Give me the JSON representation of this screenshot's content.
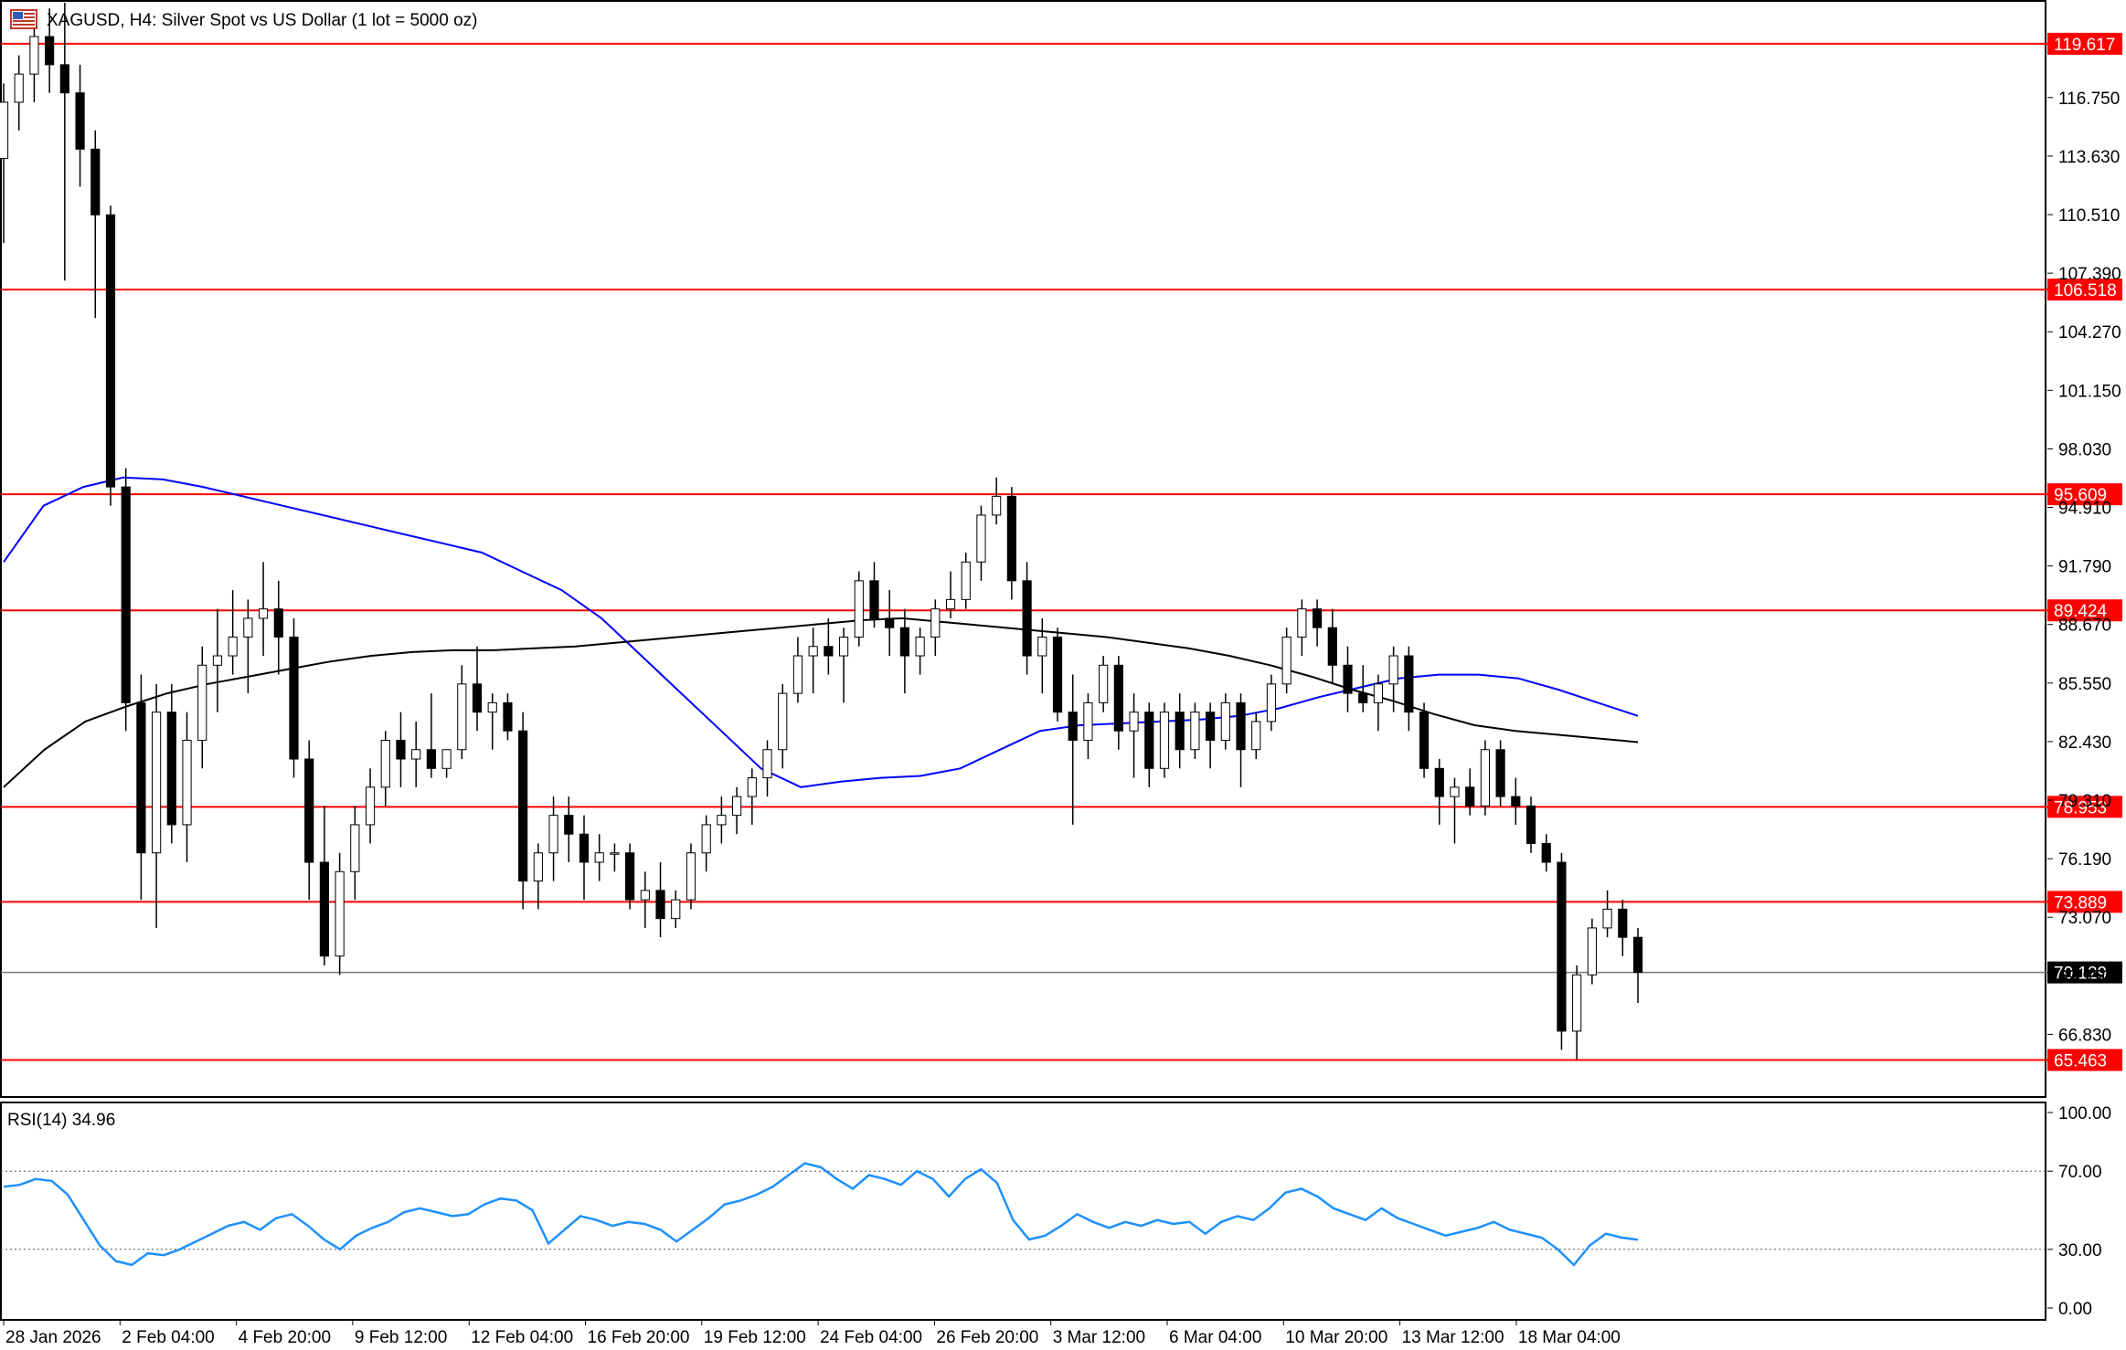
{
  "header": {
    "symbol_title": "XAGUSD, H4:  Silver Spot vs US Dollar (1 lot = 5000 oz)",
    "symbol_icon": "flag-icon"
  },
  "price_axis": {
    "ticks": [
      "119.617",
      "116.750",
      "113.630",
      "110.510",
      "107.390",
      "106.518",
      "104.270",
      "101.150",
      "98.030",
      "95.609",
      "94.910",
      "91.790",
      "89.424",
      "88.670",
      "85.550",
      "82.430",
      "78.953",
      "76.190",
      "73.889",
      "73.070",
      "70.129",
      "66.830",
      "65.463"
    ]
  },
  "time_axis": {
    "labels": [
      "28 Jan 2026",
      "2 Feb 04:00",
      "4 Feb 20:00",
      "9 Feb 12:00",
      "12 Feb 04:00",
      "16 Feb 20:00",
      "19 Feb 12:00",
      "24 Feb 04:00",
      "26 Feb 20:00",
      "3 Mar 12:00",
      "6 Mar 04:00",
      "10 Mar 20:00",
      "13 Mar 12:00",
      "18 Mar 04:00"
    ]
  },
  "rsi": {
    "label": "RSI(14) 34.96",
    "axis_ticks": [
      "100.00",
      "70.00",
      "30.00",
      "0.00"
    ]
  },
  "chart_data": [
    {
      "type": "candlestick",
      "title": "XAGUSD, H4:  Silver Spot vs US Dollar (1 lot = 5000 oz)",
      "timeframe": "H4",
      "ylim": [
        63.54,
        121.9
      ],
      "y_ticks": [
        116.75,
        113.63,
        110.51,
        107.39,
        104.27,
        101.15,
        98.03,
        94.91,
        91.79,
        88.67,
        85.55,
        82.43,
        79.31,
        76.19,
        73.07,
        69.95,
        66.83
      ],
      "x_labels": [
        "28 Jan 2026",
        "2 Feb 04:00",
        "4 Feb 20:00",
        "9 Feb 12:00",
        "12 Feb 04:00",
        "16 Feb 20:00",
        "19 Feb 12:00",
        "24 Feb 04:00",
        "26 Feb 20:00",
        "3 Mar 12:00",
        "6 Mar 04:00",
        "10 Mar 20:00",
        "13 Mar 12:00",
        "18 Mar 04:00"
      ],
      "current_price": 70.129,
      "horizontal_levels": [
        119.617,
        106.518,
        95.609,
        89.424,
        78.953,
        73.889,
        65.463
      ],
      "colors": {
        "up": "#ffffff",
        "down": "#000000",
        "level": "#ff0000",
        "ma_fast": "#0000ff",
        "ma_slow": "#000000",
        "rsi": "#1e90ff"
      },
      "candles": [
        [
          113.5,
          117.5,
          109.0,
          116.5
        ],
        [
          116.5,
          119.0,
          115.0,
          118.0
        ],
        [
          118.0,
          121.0,
          116.5,
          120.0
        ],
        [
          120.0,
          121.5,
          117.0,
          118.5
        ],
        [
          118.5,
          121.8,
          107.0,
          117.0
        ],
        [
          117.0,
          118.5,
          112.0,
          114.0
        ],
        [
          114.0,
          115.0,
          105.0,
          110.5
        ],
        [
          110.5,
          111.0,
          95.0,
          96.0
        ],
        [
          96.0,
          97.0,
          83.0,
          84.5
        ],
        [
          84.5,
          86.0,
          74.0,
          76.5
        ],
        [
          76.5,
          85.5,
          72.5,
          84.0
        ],
        [
          84.0,
          85.5,
          77.0,
          78.0
        ],
        [
          78.0,
          84.0,
          76.0,
          82.5
        ],
        [
          82.5,
          87.5,
          81.0,
          86.5
        ],
        [
          86.5,
          89.5,
          84.0,
          87.0
        ],
        [
          87.0,
          90.5,
          86.0,
          88.0
        ],
        [
          88.0,
          90.0,
          85.0,
          89.0
        ],
        [
          89.0,
          92.0,
          87.0,
          89.5
        ],
        [
          89.5,
          91.0,
          86.0,
          88.0
        ],
        [
          88.0,
          89.0,
          80.5,
          81.5
        ],
        [
          81.5,
          82.5,
          74.0,
          76.0
        ],
        [
          76.0,
          79.0,
          70.5,
          71.0
        ],
        [
          71.0,
          76.5,
          70.0,
          75.5
        ],
        [
          75.5,
          79.0,
          74.0,
          78.0
        ],
        [
          78.0,
          81.0,
          77.0,
          80.0
        ],
        [
          80.0,
          83.0,
          79.0,
          82.5
        ],
        [
          82.5,
          84.0,
          80.0,
          81.5
        ],
        [
          81.5,
          83.5,
          80.0,
          82.0
        ],
        [
          82.0,
          85.0,
          80.5,
          81.0
        ],
        [
          81.0,
          82.0,
          80.5,
          82.0
        ],
        [
          82.0,
          86.5,
          81.5,
          85.5
        ],
        [
          85.5,
          87.5,
          83.0,
          84.0
        ],
        [
          84.0,
          85.0,
          82.0,
          84.5
        ],
        [
          84.5,
          85.0,
          82.5,
          83.0
        ],
        [
          83.0,
          84.0,
          73.5,
          75.0
        ],
        [
          75.0,
          77.0,
          73.5,
          76.5
        ],
        [
          76.5,
          79.5,
          75.0,
          78.5
        ],
        [
          78.5,
          79.5,
          76.0,
          77.5
        ],
        [
          77.5,
          78.5,
          74.0,
          76.0
        ],
        [
          76.0,
          77.5,
          75.0,
          76.5
        ],
        [
          76.5,
          77.0,
          75.5,
          76.5
        ],
        [
          76.5,
          77.0,
          73.5,
          74.0
        ],
        [
          74.0,
          75.5,
          72.5,
          74.5
        ],
        [
          74.5,
          76.0,
          72.0,
          73.0
        ],
        [
          73.0,
          74.5,
          72.5,
          74.0
        ],
        [
          74.0,
          77.0,
          73.5,
          76.5
        ],
        [
          76.5,
          78.5,
          75.5,
          78.0
        ],
        [
          78.0,
          79.5,
          77.0,
          78.5
        ],
        [
          78.5,
          80.0,
          77.5,
          79.5
        ],
        [
          79.5,
          81.0,
          78.0,
          80.5
        ],
        [
          80.5,
          82.5,
          79.5,
          82.0
        ],
        [
          82.0,
          85.5,
          81.0,
          85.0
        ],
        [
          85.0,
          88.0,
          84.5,
          87.0
        ],
        [
          87.0,
          88.5,
          85.0,
          87.5
        ],
        [
          87.5,
          89.0,
          86.0,
          87.0
        ],
        [
          87.0,
          88.5,
          84.5,
          88.0
        ],
        [
          88.0,
          91.5,
          87.5,
          91.0
        ],
        [
          91.0,
          92.0,
          88.5,
          89.0
        ],
        [
          89.0,
          90.5,
          87.0,
          88.5
        ],
        [
          88.5,
          89.5,
          85.0,
          87.0
        ],
        [
          87.0,
          88.5,
          86.0,
          88.0
        ],
        [
          88.0,
          90.0,
          87.0,
          89.5
        ],
        [
          89.5,
          91.5,
          89.0,
          90.0
        ],
        [
          90.0,
          92.5,
          89.5,
          92.0
        ],
        [
          92.0,
          95.0,
          91.0,
          94.5
        ],
        [
          94.5,
          96.5,
          94.0,
          95.5
        ],
        [
          95.5,
          96.0,
          90.0,
          91.0
        ],
        [
          91.0,
          92.0,
          86.0,
          87.0
        ],
        [
          87.0,
          89.0,
          85.0,
          88.0
        ],
        [
          88.0,
          88.5,
          83.5,
          84.0
        ],
        [
          84.0,
          86.0,
          78.0,
          82.5
        ],
        [
          82.5,
          85.0,
          81.5,
          84.5
        ],
        [
          84.5,
          87.0,
          84.0,
          86.5
        ],
        [
          86.5,
          87.0,
          82.0,
          83.0
        ],
        [
          83.0,
          85.0,
          80.5,
          84.0
        ],
        [
          84.0,
          84.5,
          80.0,
          81.0
        ],
        [
          81.0,
          84.5,
          80.5,
          84.0
        ],
        [
          84.0,
          85.0,
          81.0,
          82.0
        ],
        [
          82.0,
          84.5,
          81.5,
          84.0
        ],
        [
          84.0,
          84.5,
          81.0,
          82.5
        ],
        [
          82.5,
          85.0,
          82.0,
          84.5
        ],
        [
          84.5,
          85.0,
          80.0,
          82.0
        ],
        [
          82.0,
          84.0,
          81.5,
          83.5
        ],
        [
          83.5,
          86.0,
          83.0,
          85.5
        ],
        [
          85.5,
          88.5,
          85.0,
          88.0
        ],
        [
          88.0,
          90.0,
          87.0,
          89.5
        ],
        [
          89.5,
          90.0,
          87.5,
          88.5
        ],
        [
          88.5,
          89.5,
          85.5,
          86.5
        ],
        [
          86.5,
          87.5,
          84.0,
          85.0
        ],
        [
          85.0,
          86.5,
          84.0,
          84.5
        ],
        [
          84.5,
          86.0,
          83.0,
          85.5
        ],
        [
          85.5,
          87.5,
          84.0,
          87.0
        ],
        [
          87.0,
          87.5,
          83.0,
          84.0
        ],
        [
          84.0,
          84.5,
          80.5,
          81.0
        ],
        [
          81.0,
          81.5,
          78.0,
          79.5
        ],
        [
          79.5,
          80.5,
          77.0,
          80.0
        ],
        [
          80.0,
          81.0,
          78.5,
          79.0
        ],
        [
          79.0,
          82.5,
          78.5,
          82.0
        ],
        [
          82.0,
          82.5,
          79.0,
          79.5
        ],
        [
          79.5,
          80.5,
          78.0,
          79.0
        ],
        [
          79.0,
          79.5,
          76.5,
          77.0
        ],
        [
          77.0,
          77.5,
          75.5,
          76.0
        ],
        [
          76.0,
          76.5,
          66.0,
          67.0
        ],
        [
          67.0,
          70.5,
          65.5,
          70.0
        ],
        [
          70.0,
          73.0,
          69.5,
          72.5
        ],
        [
          72.5,
          74.5,
          72.0,
          73.5
        ],
        [
          73.5,
          74.0,
          71.0,
          72.0
        ],
        [
          72.0,
          72.5,
          68.5,
          70.129
        ]
      ],
      "ma_fast": [
        92.0,
        95.0,
        96.0,
        96.5,
        96.4,
        96.0,
        95.5,
        95.0,
        94.5,
        94.0,
        93.5,
        93.0,
        92.5,
        91.5,
        90.5,
        89.0,
        87.0,
        85.0,
        83.0,
        81.0,
        80.0,
        80.3,
        80.5,
        80.6,
        81.0,
        82.0,
        83.0,
        83.3,
        83.4,
        83.5,
        83.6,
        83.8,
        84.2,
        84.8,
        85.3,
        85.8,
        86.0,
        86.0,
        85.8,
        85.2,
        84.5,
        83.8
      ],
      "ma_slow": [
        80.0,
        82.0,
        83.5,
        84.3,
        85.0,
        85.5,
        85.9,
        86.3,
        86.7,
        87.0,
        87.2,
        87.3,
        87.3,
        87.4,
        87.5,
        87.7,
        87.9,
        88.1,
        88.3,
        88.5,
        88.7,
        88.9,
        89.0,
        88.8,
        88.6,
        88.4,
        88.2,
        88.0,
        87.7,
        87.4,
        87.0,
        86.5,
        85.9,
        85.2,
        84.6,
        83.9,
        83.3,
        83.0,
        82.8,
        82.6,
        82.4
      ]
    },
    {
      "type": "line",
      "title": "RSI(14) 34.96",
      "ylim": [
        0,
        100
      ],
      "y_ticks": [
        100,
        70,
        30,
        0
      ],
      "levels": [
        70,
        30
      ],
      "values": [
        62,
        63,
        66,
        65,
        58,
        45,
        32,
        24,
        22,
        28,
        27,
        30,
        34,
        38,
        42,
        44,
        40,
        46,
        48,
        42,
        35,
        30,
        37,
        41,
        44,
        49,
        51,
        49,
        47,
        48,
        53,
        56,
        55,
        50,
        33,
        40,
        47,
        45,
        42,
        44,
        43,
        40,
        34,
        40,
        46,
        53,
        55,
        58,
        62,
        68,
        74,
        72,
        66,
        61,
        68,
        66,
        63,
        70,
        66,
        57,
        66,
        71,
        64,
        45,
        35,
        37,
        42,
        48,
        44,
        41,
        44,
        42,
        45,
        43,
        44,
        38,
        44,
        47,
        45,
        51,
        59,
        61,
        57,
        51,
        48,
        45,
        51,
        46,
        43,
        40,
        37,
        39,
        41,
        44,
        40,
        38,
        36,
        30,
        22,
        32,
        38,
        36,
        34.96
      ]
    }
  ]
}
